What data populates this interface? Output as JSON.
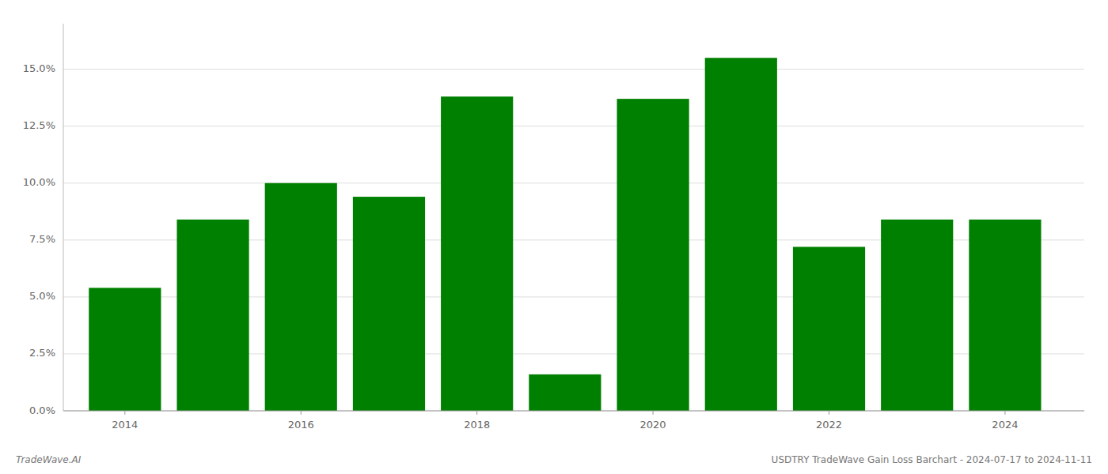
{
  "chart_data": {
    "type": "bar",
    "x": [
      2014,
      2015,
      2016,
      2017,
      2018,
      2019,
      2020,
      2021,
      2022,
      2023,
      2024
    ],
    "values": [
      0.054,
      0.084,
      0.1,
      0.094,
      0.138,
      0.016,
      0.137,
      0.155,
      0.072,
      0.084,
      0.084
    ],
    "color": "#008000",
    "xlim": [
      2013.3,
      2024.9
    ],
    "xticks": [
      2014,
      2016,
      2018,
      2020,
      2022,
      2024
    ],
    "ylim": [
      0,
      0.17
    ],
    "yticks": [
      {
        "value": 0.0,
        "label": "0.0%"
      },
      {
        "value": 0.025,
        "label": "2.5%"
      },
      {
        "value": 0.05,
        "label": "5.0%"
      },
      {
        "value": 0.075,
        "label": "7.5%"
      },
      {
        "value": 0.1,
        "label": "10.0%"
      },
      {
        "value": 0.125,
        "label": "12.5%"
      },
      {
        "value": 0.15,
        "label": "15.0%"
      }
    ],
    "grid": true,
    "annotations": [
      "TradeWave.AI",
      "USDTRY TradeWave Gain Loss Barchart - 2024-07-17 to 2024-11-11"
    ]
  }
}
